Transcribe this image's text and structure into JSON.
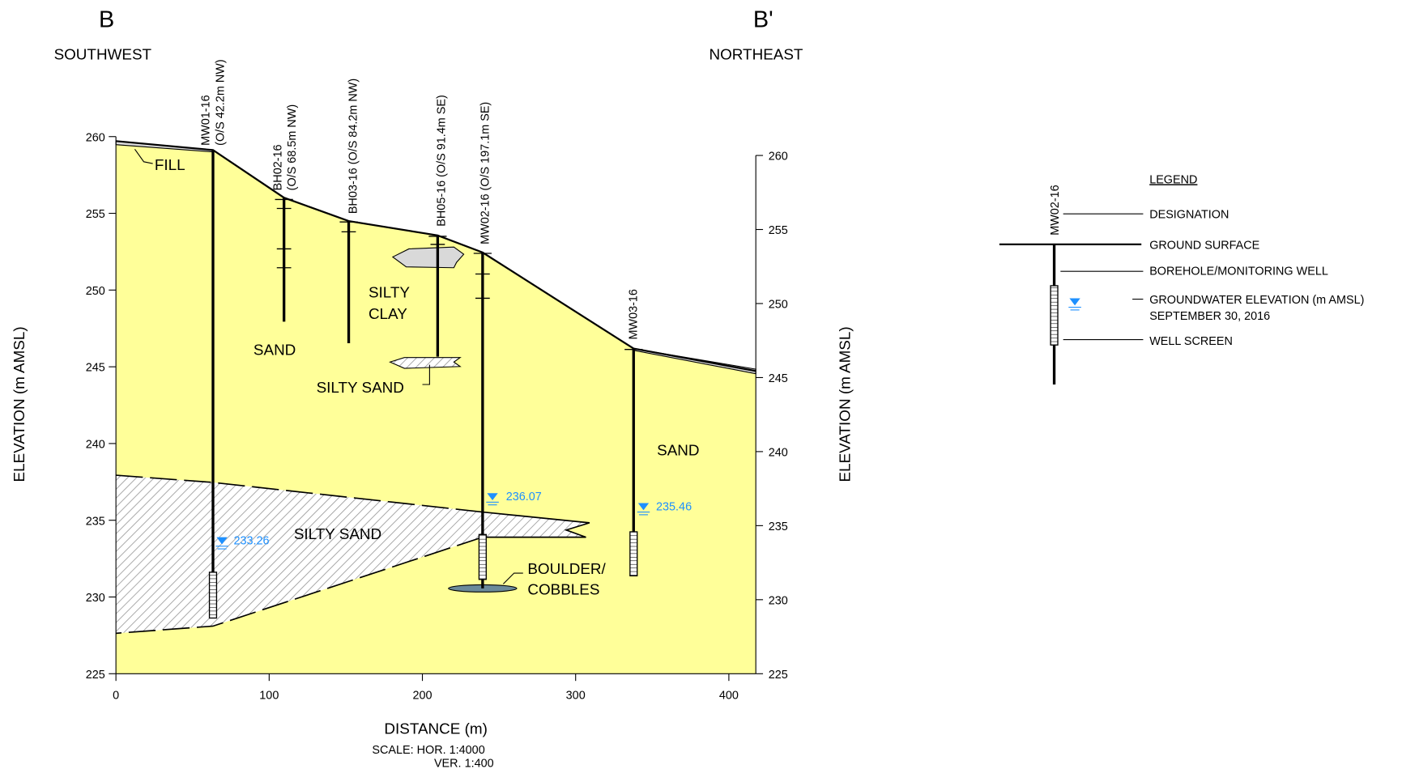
{
  "header": {
    "left_mark": "B",
    "right_mark": "B'",
    "left_direction": "SOUTHWEST",
    "right_direction": "NORTHEAST"
  },
  "axes": {
    "left": {
      "label": "ELEVATION (m AMSL)",
      "ticks": [
        225,
        230,
        235,
        240,
        245,
        250,
        255,
        260
      ]
    },
    "right": {
      "label": "ELEVATION (m AMSL)",
      "ticks": [
        225,
        230,
        235,
        240,
        245,
        250,
        255,
        260
      ]
    },
    "bottom": {
      "label": "DISTANCE (m)",
      "ticks": [
        0,
        100,
        200,
        300,
        400
      ]
    },
    "scale": [
      "SCALE:  HOR. 1:4000",
      "VER. 1:400"
    ]
  },
  "boreholes": [
    {
      "lines": [
        "MW01-16",
        "(O/S 42.2m NW)"
      ]
    },
    {
      "lines": [
        "BH02-16",
        "(O/S 68.5m NW)"
      ]
    },
    {
      "lines": [
        "BH03-16 (O/S 84.2m NW)"
      ]
    },
    {
      "lines": [
        "BH05-16 (O/S 91.4m SE)"
      ]
    },
    {
      "lines": [
        "MW02-16 (O/S 197.1m SE)"
      ]
    },
    {
      "lines": [
        "MW03-16"
      ]
    }
  ],
  "units": {
    "fill": "FILL",
    "sand_upper": "SAND",
    "silty_clay": [
      "SILTY",
      "CLAY"
    ],
    "silty_sand_lens": "SILTY SAND",
    "silty_sand": "SILTY SAND",
    "sand_right": "SAND",
    "boulders": [
      "BOULDER/",
      "COBBLES"
    ]
  },
  "water_levels": [
    "233.26",
    "236.07",
    "235.46"
  ],
  "legend": {
    "title": "LEGEND",
    "sample": "MW02-16",
    "items": [
      "DESIGNATION",
      "GROUND SURFACE",
      "BOREHOLE/MONITORING WELL",
      [
        "GROUNDWATER ELEVATION (m AMSL)",
        "SEPTEMBER 30, 2016"
      ],
      "WELL SCREEN"
    ]
  }
}
